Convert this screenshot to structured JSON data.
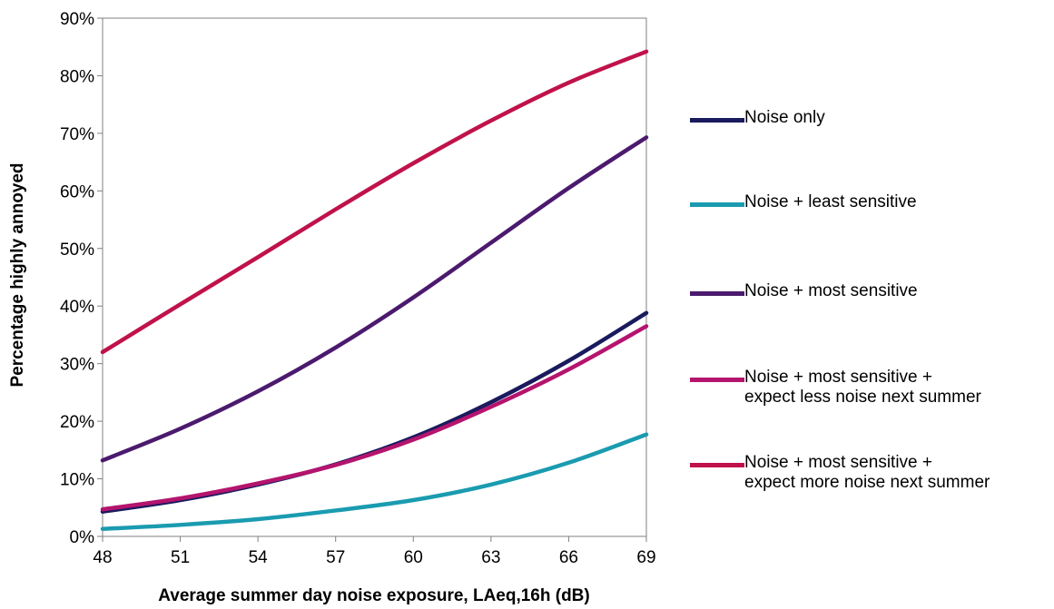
{
  "chart_data": {
    "type": "line",
    "xlabel": "Average summer day noise exposure, LAeq,16h (dB)",
    "ylabel": "Percentage highly annoyed",
    "x_ticks": [
      "48",
      "51",
      "54",
      "57",
      "60",
      "63",
      "66",
      "69"
    ],
    "y_ticks": [
      "0%",
      "10%",
      "20%",
      "30%",
      "40%",
      "50%",
      "60%",
      "70%",
      "80%",
      "90%"
    ],
    "xlim": [
      48,
      69
    ],
    "ylim": [
      0,
      90
    ],
    "grid": false,
    "legend_position": "right",
    "x": [
      48,
      51,
      54,
      57,
      60,
      63,
      66,
      69
    ],
    "series": [
      {
        "name": "Noise only",
        "color": "#1a1a5e",
        "values": [
          4.3,
          6.3,
          9.0,
          12.5,
          17.2,
          23.3,
          30.5,
          38.8
        ]
      },
      {
        "name": "Noise + least sensitive",
        "color": "#1a9bb0",
        "values": [
          1.3,
          2.0,
          3.0,
          4.5,
          6.3,
          9.0,
          12.8,
          17.7
        ]
      },
      {
        "name": "Noise + most sensitive",
        "color": "#4b1a6e",
        "values": [
          13.2,
          18.7,
          25.2,
          32.8,
          41.5,
          51.0,
          60.5,
          69.3
        ]
      },
      {
        "name": "Noise + most sensitive +\nexpect less noise next summer",
        "color": "#b5146e",
        "values": [
          4.7,
          6.6,
          9.2,
          12.4,
          16.8,
          22.5,
          29.0,
          36.5
        ]
      },
      {
        "name": "Noise + most sensitive +\nexpect more noise next summer",
        "color": "#c0124a",
        "values": [
          32.0,
          40.3,
          48.5,
          56.8,
          64.8,
          72.2,
          78.8,
          84.2
        ]
      }
    ]
  }
}
